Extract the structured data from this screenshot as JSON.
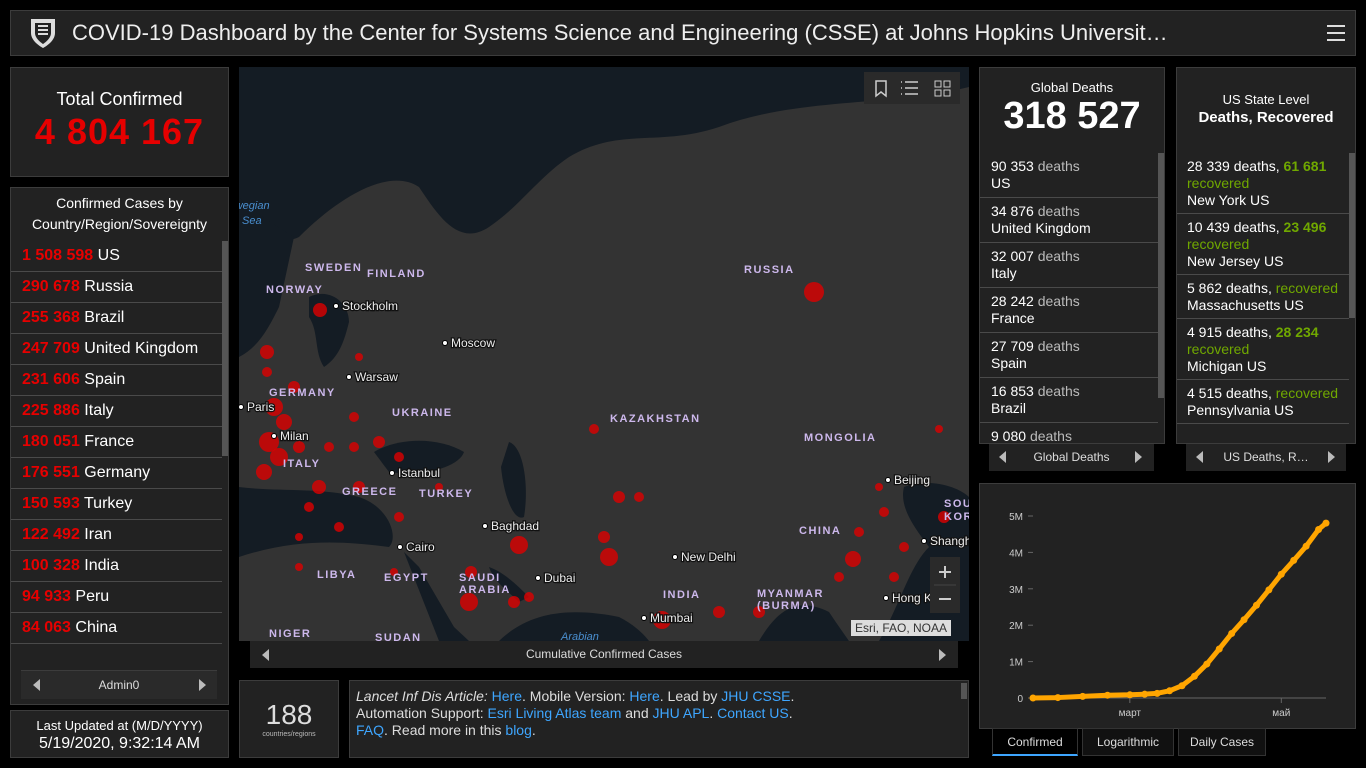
{
  "header": {
    "title": "COVID-19 Dashboard by the Center for Systems Science and Engineering (CSSE) at Johns Hopkins Universit…"
  },
  "total": {
    "label": "Total Confirmed",
    "value": "4 804 167"
  },
  "countries": {
    "title": "Confirmed Cases by Country/Region/Sovereignty",
    "rows": [
      {
        "count": "1 508 598",
        "name": "US"
      },
      {
        "count": "290 678",
        "name": "Russia"
      },
      {
        "count": "255 368",
        "name": "Brazil"
      },
      {
        "count": "247 709",
        "name": "United Kingdom"
      },
      {
        "count": "231 606",
        "name": "Spain"
      },
      {
        "count": "225 886",
        "name": "Italy"
      },
      {
        "count": "180 051",
        "name": "France"
      },
      {
        "count": "176 551",
        "name": "Germany"
      },
      {
        "count": "150 593",
        "name": "Turkey"
      },
      {
        "count": "122 492",
        "name": "Iran"
      },
      {
        "count": "100 328",
        "name": "India"
      },
      {
        "count": "94 933",
        "name": "Peru"
      },
      {
        "count": "84 063",
        "name": "China"
      }
    ],
    "footer": "Admin0"
  },
  "updated": {
    "label": "Last Updated at (M/D/YYYY)",
    "value": "5/19/2020, 9:32:14 AM"
  },
  "map": {
    "labels": [
      "Norwegian",
      "Sea",
      "SWEDEN",
      "FINLAND",
      "NORWAY",
      "Stockholm",
      "Moscow",
      "RUSSIA",
      "Warsaw",
      "GERMANY",
      "Paris",
      "UKRAINE",
      "KAZAKHSTAN",
      "MONGOLIA",
      "Milan",
      "ITALY",
      "Istanbul",
      "GREECE",
      "TURKEY",
      "Baghdad",
      "Beijing",
      "SOUTH",
      "KOREA",
      "CHINA",
      "Shanghai",
      "New Delhi",
      "Cairo",
      "LIBYA",
      "EGYPT",
      "SAUDI",
      "ARABIA",
      "Dubai",
      "INDIA",
      "MYANMAR",
      "(BURMA)",
      "Hong Kong",
      "Mumbai",
      "NIGER",
      "SUDAN",
      "Arabian"
    ],
    "attribution": "Esri, FAO, NOAA",
    "footer": "Cumulative Confirmed Cases"
  },
  "count": {
    "value": "188",
    "label": "countries/regions"
  },
  "article": {
    "segments": [
      {
        "text": "Lancet Inf Dis Article:",
        "italic": true
      },
      {
        "text": " "
      },
      {
        "text": "Here",
        "link": true
      },
      {
        "text": ". Mobile Version: "
      },
      {
        "text": "Here",
        "link": true
      },
      {
        "text": ". Lead by "
      },
      {
        "text": "JHU CSSE",
        "link": true
      },
      {
        "text": ". Automation Support: "
      },
      {
        "text": "Esri Living Atlas team",
        "link": true
      },
      {
        "text": " and "
      },
      {
        "text": "JHU APL",
        "link": true
      },
      {
        "text": ". "
      },
      {
        "text": "Contact US",
        "link": true
      },
      {
        "text": ". "
      },
      {
        "text": "FAQ",
        "link": true
      },
      {
        "text": ". Read more in this "
      },
      {
        "text": "blog",
        "link": true
      },
      {
        "text": "."
      }
    ]
  },
  "deaths": {
    "title": "Global Deaths",
    "value": "318 527",
    "unit": "deaths",
    "rows": [
      {
        "count": "90 353",
        "place": "US"
      },
      {
        "count": "34 876",
        "place": "United Kingdom"
      },
      {
        "count": "32 007",
        "place": "Italy"
      },
      {
        "count": "28 242",
        "place": "France"
      },
      {
        "count": "27 709",
        "place": "Spain"
      },
      {
        "count": "16 853",
        "place": "Brazil"
      },
      {
        "count": "9 080"
      }
    ],
    "footer": "Global Deaths"
  },
  "us": {
    "title": "US State Level",
    "subtitle": "Deaths, Recovered",
    "deaths_unit": "deaths,",
    "recovered_unit": "recovered",
    "rows": [
      {
        "deaths": "28 339",
        "recovered": "61 681",
        "place": "New York US"
      },
      {
        "deaths": "10 439",
        "recovered": "23 496",
        "place": "New Jersey US"
      },
      {
        "deaths": "5 862",
        "place": "Massachusetts US"
      },
      {
        "deaths": "4 915",
        "recovered": "28 234",
        "place": "Michigan US"
      },
      {
        "deaths": "4 515",
        "place": "Pennsylvania US"
      }
    ],
    "footer": "US Deaths, R…"
  },
  "chart_data": {
    "type": "line",
    "x": [
      0,
      10,
      20,
      30,
      39,
      45,
      50,
      55,
      60,
      65,
      70,
      75,
      80,
      85,
      90,
      95,
      100,
      105,
      110,
      115,
      118
    ],
    "series": [
      {
        "color": "#ffa500",
        "values": [
          555,
          12000,
          45000,
          77000,
          88000,
          105000,
          128000,
          198000,
          337000,
          596000,
          932000,
          1346000,
          1772000,
          2151000,
          2548000,
          2971000,
          3400000,
          3780000,
          4170000,
          4630000,
          4804167
        ]
      }
    ],
    "xlim": [
      0,
      118
    ],
    "xticks": [
      {
        "value": 39,
        "label": "март"
      },
      {
        "value": 100,
        "label": "май"
      }
    ],
    "ylim": [
      0,
      5000000
    ],
    "yticks": [
      0,
      {
        "value": 1000000,
        "label": "1M"
      },
      {
        "value": 2000000,
        "label": "2M"
      },
      {
        "value": 3000000,
        "label": "3M"
      },
      {
        "value": 4000000,
        "label": "4M"
      },
      {
        "value": 5000000,
        "label": "5M"
      }
    ],
    "grid": false
  },
  "chart_tabs": [
    "Confirmed",
    "Logarithmic",
    "Daily Cases"
  ]
}
